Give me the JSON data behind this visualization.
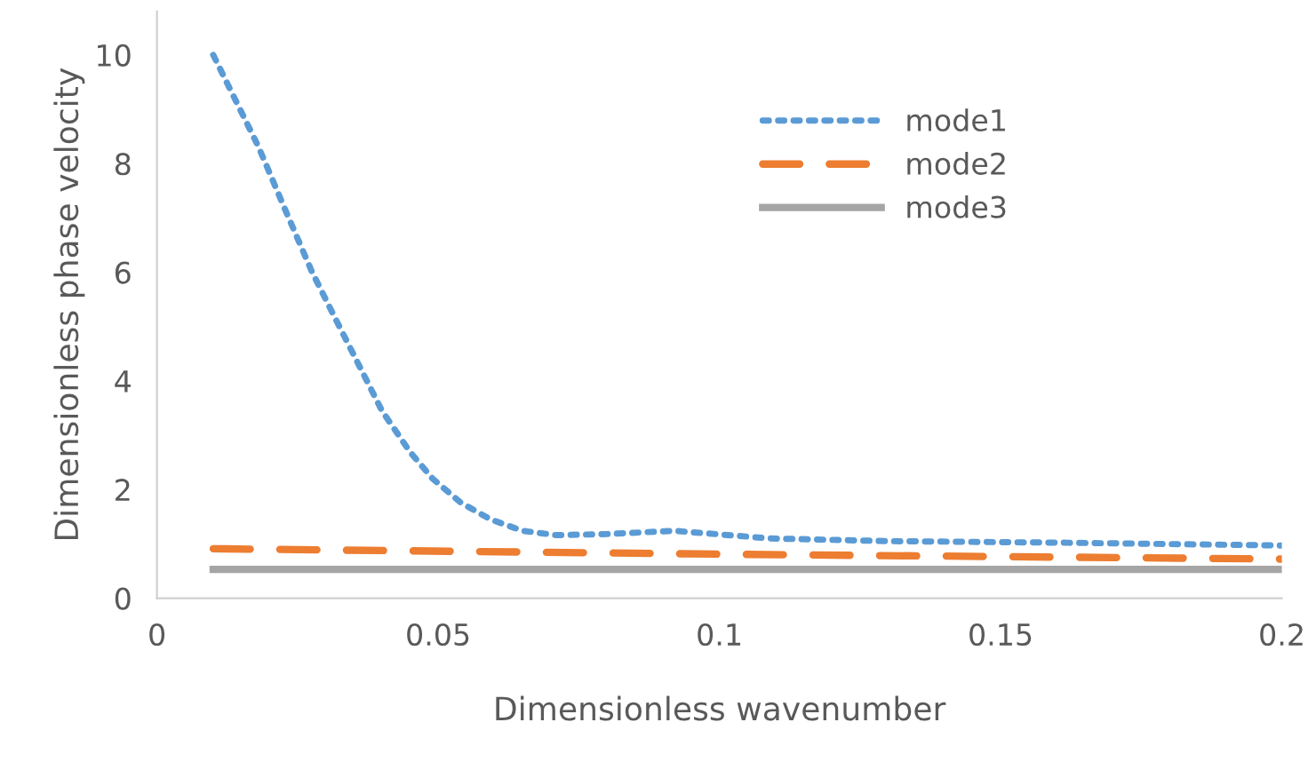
{
  "chart_data": {
    "type": "line",
    "xlabel": "Dimensionless wavenumber",
    "ylabel": "Dimensionless phase velocity",
    "xlim": [
      0,
      0.2
    ],
    "xticks": [
      0,
      0.05,
      0.1,
      0.15,
      0.2
    ],
    "ylim": [
      0,
      10.8
    ],
    "yticks": [
      0,
      2,
      4,
      6,
      8,
      10
    ],
    "grid": false,
    "legend": "top right",
    "series": [
      {
        "name": "mode1",
        "color": "#5b9bd5",
        "line_style": "dotted",
        "x": [
          0.01,
          0.018,
          0.0228,
          0.0275,
          0.0317,
          0.036,
          0.04,
          0.045,
          0.049,
          0.054,
          0.0593,
          0.065,
          0.071,
          0.08,
          0.092,
          0.109,
          0.13,
          0.162,
          0.2
        ],
        "values": [
          10,
          8.32,
          7.15,
          6.02,
          5.15,
          4.27,
          3.45,
          2.69,
          2.2,
          1.76,
          1.45,
          1.24,
          1.16,
          1.18,
          1.24,
          1.1,
          1.05,
          1.02,
          0.97
        ]
      },
      {
        "name": "mode2",
        "color": "#ed7d31",
        "line_style": "dashed",
        "x": [
          0.01,
          0.1,
          0.2
        ],
        "values": [
          0.91,
          0.81,
          0.72
        ]
      },
      {
        "name": "mode3",
        "color": "#a5a5a5",
        "line_style": "solid",
        "x": [
          0.01,
          0.2
        ],
        "values": [
          0.53,
          0.53
        ]
      }
    ]
  }
}
